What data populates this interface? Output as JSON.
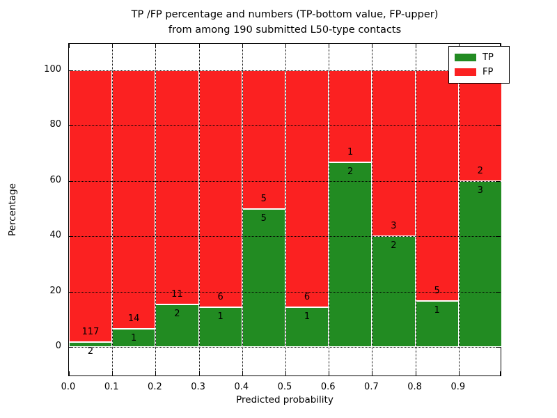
{
  "figure": {
    "title_line1": "TP /FP percentage and numbers (TP-bottom value, FP-upper)",
    "title_line2": "from among 190 submitted L50-type contacts"
  },
  "chart_data": {
    "type": "bar",
    "stacked": true,
    "title": "TP /FP percentage and numbers (TP-bottom value, FP-upper) from among 190 submitted L50-type contacts",
    "xlabel": "Predicted probability",
    "ylabel": "Percentage",
    "xlim": [
      0.0,
      1.0
    ],
    "ylim": [
      -10.8,
      109.6
    ],
    "x_tick_labels": [
      "0.0",
      "0.1",
      "0.2",
      "0.3",
      "0.4",
      "0.5",
      "0.6",
      "0.7",
      "0.8",
      "0.9"
    ],
    "y_tick_values": [
      0,
      20,
      40,
      60,
      80,
      100
    ],
    "grid": "dotted, both axes, drawn above bars",
    "bar_edge_color": "#ffffff",
    "total_contacts": 190,
    "annotation_note": "FP count printed above the TP/FP boundary, TP count below it",
    "legend": {
      "position": "upper right",
      "entries": [
        {
          "label": "TP",
          "color": "#228b22"
        },
        {
          "label": "FP",
          "color": "#fb2121"
        }
      ]
    },
    "colors": {
      "tp": "#228b22",
      "fp": "#fb2121"
    },
    "bins": [
      {
        "range": [
          0.0,
          0.1
        ],
        "tp": 2,
        "fp": 117,
        "tp_pct": 1.68
      },
      {
        "range": [
          0.1,
          0.2
        ],
        "tp": 1,
        "fp": 14,
        "tp_pct": 6.67
      },
      {
        "range": [
          0.2,
          0.3
        ],
        "tp": 2,
        "fp": 11,
        "tp_pct": 15.38
      },
      {
        "range": [
          0.3,
          0.4
        ],
        "tp": 1,
        "fp": 6,
        "tp_pct": 14.29
      },
      {
        "range": [
          0.4,
          0.5
        ],
        "tp": 5,
        "fp": 5,
        "tp_pct": 50.0
      },
      {
        "range": [
          0.5,
          0.6
        ],
        "tp": 1,
        "fp": 6,
        "tp_pct": 14.29
      },
      {
        "range": [
          0.6,
          0.7
        ],
        "tp": 2,
        "fp": 1,
        "tp_pct": 66.67
      },
      {
        "range": [
          0.7,
          0.8
        ],
        "tp": 2,
        "fp": 3,
        "tp_pct": 40.0
      },
      {
        "range": [
          0.8,
          0.9
        ],
        "tp": 1,
        "fp": 5,
        "tp_pct": 16.67
      },
      {
        "range": [
          0.9,
          1.0
        ],
        "tp": 3,
        "fp": 2,
        "tp_pct": 60.0
      }
    ]
  }
}
